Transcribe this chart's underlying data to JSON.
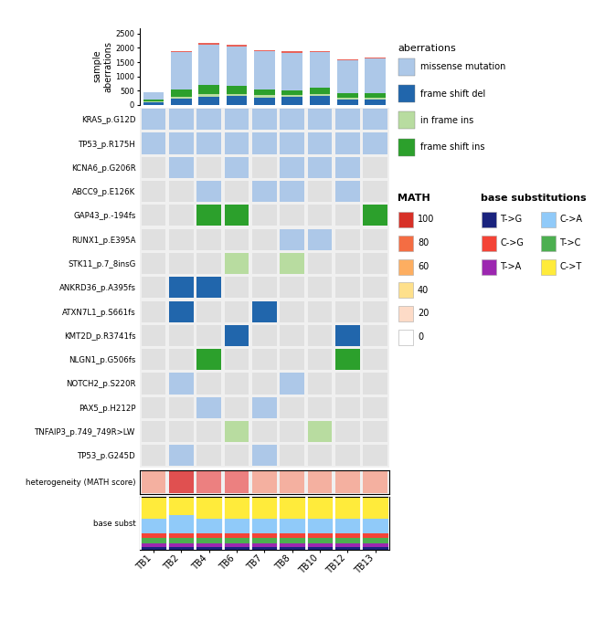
{
  "samples": [
    "TB1",
    "TB2",
    "TB4",
    "TB6",
    "TB7",
    "TB8",
    "TB10",
    "TB12",
    "TB13"
  ],
  "genes": [
    "KRAS_p.G12D",
    "TP53_p.R175H",
    "KCNA6_p.G206R",
    "ABCC9_p.E126K",
    "GAP43_p.-194fs",
    "RUNX1_p.E395A",
    "STK11_p.7_8insG",
    "ANKRD36_p.A395fs",
    "ATXN7L1_p.S661fs",
    "KMT2D_p.R3741fs",
    "NLGN1_p.G506fs",
    "NOTCH2_p.S220R",
    "PAX5_p.H212P",
    "TNFAIP3_p.749_749R>LW",
    "TP53_p.G245D"
  ],
  "aberration_colors": {
    "missense": "#adc8e8",
    "frame_shift_del": "#2166ac",
    "in_frame_ins": "#b8dca0",
    "frame_shift_ins": "#2ca02c",
    "none": "#e0e0e0"
  },
  "heatmap_data": {
    "KRAS_p.G12D": [
      "missense",
      "missense",
      "missense",
      "missense",
      "missense",
      "missense",
      "missense",
      "missense",
      "missense"
    ],
    "TP53_p.R175H": [
      "missense",
      "missense",
      "missense",
      "missense",
      "missense",
      "missense",
      "missense",
      "missense",
      "missense"
    ],
    "KCNA6_p.G206R": [
      "none",
      "missense",
      "none",
      "missense",
      "none",
      "missense",
      "missense",
      "missense",
      "none"
    ],
    "ABCC9_p.E126K": [
      "none",
      "none",
      "missense",
      "none",
      "missense",
      "missense",
      "none",
      "missense",
      "none"
    ],
    "GAP43_p.-194fs": [
      "none",
      "none",
      "frame_shift_ins",
      "frame_shift_ins",
      "none",
      "none",
      "none",
      "none",
      "frame_shift_ins"
    ],
    "RUNX1_p.E395A": [
      "none",
      "none",
      "none",
      "none",
      "none",
      "missense",
      "missense",
      "none",
      "none"
    ],
    "STK11_p.7_8insG": [
      "none",
      "none",
      "none",
      "in_frame_ins",
      "none",
      "in_frame_ins",
      "none",
      "none",
      "none"
    ],
    "ANKRD36_p.A395fs": [
      "none",
      "frame_shift_del",
      "frame_shift_del",
      "none",
      "none",
      "none",
      "none",
      "none",
      "none"
    ],
    "ATXN7L1_p.S661fs": [
      "none",
      "frame_shift_del",
      "none",
      "none",
      "frame_shift_del",
      "none",
      "none",
      "none",
      "none"
    ],
    "KMT2D_p.R3741fs": [
      "none",
      "none",
      "none",
      "frame_shift_del",
      "none",
      "none",
      "none",
      "frame_shift_del",
      "none"
    ],
    "NLGN1_p.G506fs": [
      "none",
      "none",
      "frame_shift_ins",
      "none",
      "none",
      "none",
      "none",
      "frame_shift_ins",
      "none"
    ],
    "NOTCH2_p.S220R": [
      "none",
      "missense",
      "none",
      "none",
      "none",
      "missense",
      "none",
      "none",
      "none"
    ],
    "PAX5_p.H212P": [
      "none",
      "none",
      "missense",
      "none",
      "missense",
      "none",
      "none",
      "none",
      "none"
    ],
    "TNFAIP3_p.749_749R>LW": [
      "none",
      "none",
      "none",
      "in_frame_ins",
      "none",
      "none",
      "in_frame_ins",
      "none",
      "none"
    ],
    "TP53_p.G245D": [
      "none",
      "missense",
      "none",
      "none",
      "missense",
      "none",
      "none",
      "none",
      "none"
    ]
  },
  "bar_data": {
    "frame_shift_del": [
      100,
      220,
      280,
      300,
      260,
      270,
      310,
      190,
      190
    ],
    "in_frame_ins": [
      20,
      50,
      100,
      80,
      80,
      60,
      60,
      50,
      50
    ],
    "frame_shift_ins": [
      60,
      280,
      320,
      270,
      190,
      190,
      230,
      180,
      180
    ],
    "missense": [
      250,
      1300,
      1400,
      1400,
      1350,
      1300,
      1250,
      1150,
      1200
    ],
    "red_line": [
      15,
      50,
      70,
      60,
      50,
      50,
      45,
      40,
      35
    ]
  },
  "bar_ylim": [
    0,
    2700
  ],
  "bar_yticks": [
    0,
    500,
    1000,
    1500,
    2000,
    2500
  ],
  "math_scores": [
    62,
    85,
    72,
    70,
    68,
    68,
    65,
    65,
    62
  ],
  "math_colors_by_score": {
    "high": "#e8635a",
    "medium": "#f4a28c",
    "low": "#fbcfbe"
  },
  "base_subst_data": {
    "T->G": [
      0.05,
      0.05,
      0.05,
      0.05,
      0.05,
      0.05,
      0.05,
      0.05,
      0.05
    ],
    "T->A": [
      0.07,
      0.07,
      0.07,
      0.07,
      0.07,
      0.07,
      0.07,
      0.07,
      0.07
    ],
    "T->C": [
      0.1,
      0.1,
      0.1,
      0.1,
      0.1,
      0.1,
      0.1,
      0.1,
      0.1
    ],
    "C->G": [
      0.08,
      0.08,
      0.08,
      0.08,
      0.08,
      0.08,
      0.08,
      0.08,
      0.08
    ],
    "C->A": [
      0.28,
      0.35,
      0.28,
      0.28,
      0.28,
      0.28,
      0.28,
      0.28,
      0.28
    ],
    "C->T": [
      0.42,
      0.35,
      0.42,
      0.42,
      0.42,
      0.42,
      0.42,
      0.42,
      0.42
    ]
  },
  "base_subst_colors": {
    "T->G": "#1a237e",
    "T->A": "#9c27b0",
    "T->C": "#4caf50",
    "C->G": "#f44336",
    "C->A": "#90caf9",
    "C->T": "#ffeb3b"
  },
  "legend_aberrations": [
    [
      "missense mutation",
      "#adc8e8"
    ],
    [
      "frame shift del",
      "#2166ac"
    ],
    [
      "in frame ins",
      "#b8dca0"
    ],
    [
      "frame shift ins",
      "#2ca02c"
    ]
  ],
  "legend_math": [
    [
      100,
      "#d73027"
    ],
    [
      80,
      "#f46d43"
    ],
    [
      60,
      "#fdae61"
    ],
    [
      40,
      "#fee08b"
    ],
    [
      20,
      "#fddbc7"
    ],
    [
      0,
      "#ffffff"
    ]
  ],
  "legend_base": [
    [
      "T->G",
      "#1a237e"
    ],
    [
      "C->G",
      "#f44336"
    ],
    [
      "T->A",
      "#9c27b0"
    ],
    [
      "C->A",
      "#90caf9"
    ],
    [
      "T->C",
      "#4caf50"
    ],
    [
      "C->T",
      "#ffeb3b"
    ]
  ]
}
